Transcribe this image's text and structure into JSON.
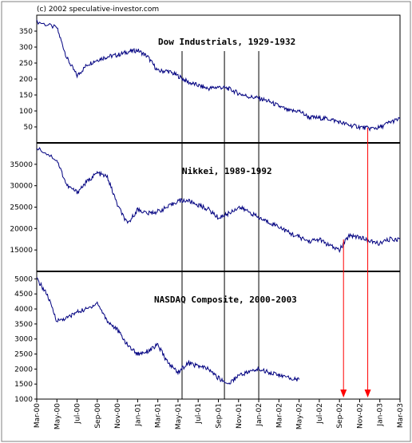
{
  "chart_data": {
    "type": "line",
    "copyright": "(c) 2002 speculative-investor.com",
    "x_tick_labels": [
      "Mar-00",
      "May-00",
      "Jul-00",
      "Sep-00",
      "Nov-00",
      "Jan-01",
      "Mar-01",
      "May-01",
      "Jul-01",
      "Sep-01",
      "Nov-01",
      "Jan-02",
      "Mar-02",
      "May-02",
      "Jul-02",
      "Sep-02",
      "Nov-02",
      "Jan-03",
      "Mar-03"
    ],
    "grid": false,
    "legend": "none",
    "colors": {
      "line": "#000080",
      "arrow": "#ff0000",
      "axis": "#000000"
    },
    "panels": [
      {
        "key": "dow",
        "title": "Dow Industrials, 1929-1932",
        "ylim": [
          0,
          400
        ],
        "y_ticks": [
          50,
          100,
          150,
          200,
          250,
          300,
          350
        ],
        "series": {
          "x": [
            0,
            1,
            1.5,
            2,
            2.5,
            3,
            3.5,
            4,
            4.5,
            5,
            5.5,
            6,
            6.5,
            7,
            7.5,
            8,
            8.5,
            9,
            9.5,
            10,
            10.5,
            11,
            11.5,
            12,
            12.5,
            13,
            13.5,
            14,
            14.5,
            15,
            15.5,
            16,
            16.5,
            17,
            17.5,
            18
          ],
          "y": [
            380,
            360,
            265,
            210,
            245,
            260,
            270,
            275,
            285,
            290,
            270,
            225,
            225,
            210,
            190,
            180,
            170,
            175,
            170,
            155,
            145,
            140,
            130,
            115,
            100,
            100,
            80,
            78,
            75,
            65,
            55,
            50,
            45,
            48,
            65,
            75
          ]
        }
      },
      {
        "key": "nikkei",
        "title": "Nikkei, 1989-1992",
        "ylim": [
          10000,
          40000
        ],
        "y_ticks": [
          15000,
          20000,
          25000,
          30000,
          35000
        ],
        "series": {
          "x": [
            0,
            1,
            1.5,
            2,
            2.5,
            3,
            3.5,
            4,
            4.5,
            5,
            5.5,
            6,
            6.5,
            7,
            7.5,
            8,
            8.5,
            9,
            9.5,
            10,
            10.5,
            11,
            11.5,
            12,
            12.5,
            13,
            13.5,
            14,
            14.5,
            15,
            15.5,
            16,
            16.5,
            17,
            17.5,
            18
          ],
          "y": [
            39000,
            36000,
            30000,
            28500,
            31000,
            33000,
            32000,
            25500,
            21000,
            24500,
            23500,
            24000,
            25000,
            26500,
            26500,
            25500,
            24500,
            22500,
            23500,
            25000,
            24000,
            22500,
            21500,
            20500,
            19000,
            18000,
            17000,
            17500,
            16000,
            15000,
            18500,
            18000,
            17000,
            16500,
            17500,
            17500
          ]
        }
      },
      {
        "key": "nasdaq",
        "title": "NASDAQ Composite, 2000-2003",
        "ylim": [
          1000,
          5250
        ],
        "y_ticks": [
          1000,
          1500,
          2000,
          2500,
          3000,
          3500,
          4000,
          4500,
          5000
        ],
        "series": {
          "x": [
            0,
            0.5,
            1,
            1.5,
            2,
            2.5,
            3,
            3.5,
            4,
            4.5,
            5,
            5.5,
            6,
            6.5,
            7,
            7.5,
            8,
            8.5,
            9,
            9.5,
            10,
            10.5,
            11,
            11.5,
            12,
            12.5,
            13
          ],
          "y": [
            5000,
            4500,
            3600,
            3700,
            3900,
            4000,
            4200,
            3600,
            3300,
            2800,
            2500,
            2600,
            2800,
            2200,
            1900,
            2200,
            2100,
            2000,
            1700,
            1500,
            1800,
            1900,
            2000,
            1900,
            1800,
            1700,
            1650
          ]
        }
      }
    ],
    "annotations": {
      "vertical_lines_x": [
        7.2,
        9.3,
        11.0
      ],
      "red_arrows_x": [
        15.2,
        16.4
      ]
    }
  }
}
